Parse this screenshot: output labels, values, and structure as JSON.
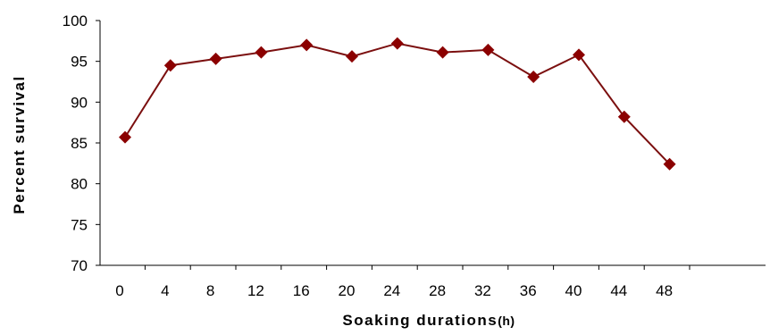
{
  "chart_data": {
    "type": "line",
    "title": "",
    "xlabel": "Soaking durations",
    "xlabel_unit": "(h)",
    "ylabel": "Percent survival",
    "x": [
      0,
      4,
      8,
      12,
      16,
      20,
      24,
      28,
      32,
      36,
      40,
      44,
      48
    ],
    "y": [
      85.7,
      94.5,
      95.3,
      96.1,
      97.0,
      95.6,
      97.2,
      96.1,
      96.4,
      93.1,
      95.8,
      88.2,
      82.4
    ],
    "ylim": [
      70,
      100
    ],
    "yticks": [
      70,
      75,
      80,
      85,
      90,
      95,
      100
    ],
    "xtick_labels": [
      "0",
      "4",
      "8",
      "12",
      "16",
      "20",
      "24",
      "28",
      "32",
      "36",
      "40",
      "44",
      "48"
    ],
    "ytick_labels": [
      "70",
      "75",
      "80",
      "85",
      "90",
      "95",
      "100"
    ],
    "grid": false,
    "legend": false,
    "marker": "diamond",
    "line_color": "#7B0F0F",
    "marker_color": "#8B0000"
  }
}
